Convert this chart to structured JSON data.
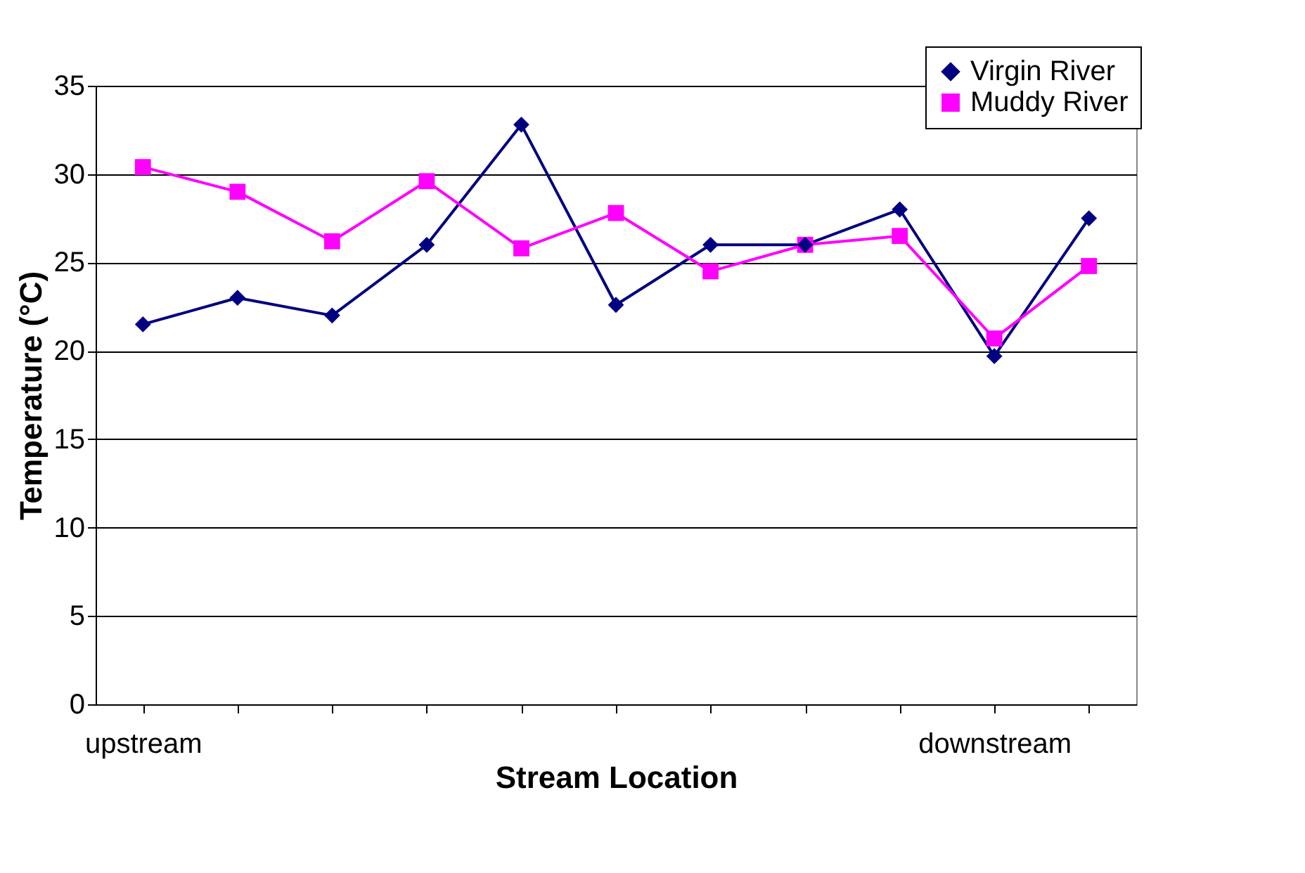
{
  "chart_data": {
    "type": "line",
    "xlabel": "Stream Location",
    "ylabel": "Temperature (°C)",
    "categories": [
      "upstream",
      null,
      null,
      null,
      null,
      null,
      null,
      null,
      null,
      "downstream",
      null
    ],
    "series": [
      {
        "name": "Virgin River",
        "color": "#000080",
        "marker": "diamond",
        "values": [
          21.5,
          23.0,
          22.0,
          26.0,
          32.8,
          22.6,
          26.0,
          26.0,
          28.0,
          19.7,
          27.5
        ]
      },
      {
        "name": "Muddy River",
        "color": "#ff00ff",
        "marker": "square",
        "values": [
          30.4,
          29.0,
          26.2,
          29.6,
          25.8,
          27.8,
          24.5,
          26.0,
          26.5,
          20.7,
          24.8
        ]
      }
    ],
    "ylim": [
      0,
      35
    ],
    "yticks": [
      0,
      5,
      10,
      15,
      20,
      25,
      30,
      35
    ],
    "grid": "y",
    "legend": "top right",
    "line_style": "solid"
  }
}
